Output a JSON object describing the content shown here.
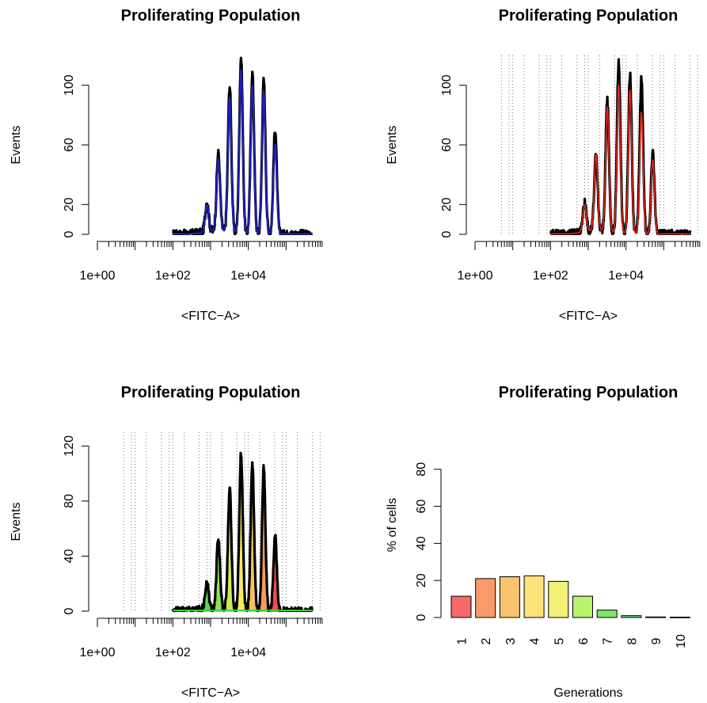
{
  "chart_data": [
    {
      "type": "line",
      "title": "Proliferating Population",
      "xlabel": "<FITC−A>",
      "ylabel": "Events",
      "x_scale": "log10",
      "xlim": [
        1,
        1000000
      ],
      "ylim": [
        0,
        120
      ],
      "x_tick_labels": [
        "1e+00",
        "1e+02",
        "1e+04"
      ],
      "y_tick_labels": [
        "0",
        "20",
        "60",
        "100"
      ],
      "grid": false,
      "series": [
        {
          "role": "data",
          "color": "#000000",
          "peak_x": [
            800,
            1600,
            3200,
            6400,
            12800,
            25600,
            51200
          ],
          "peak_y": [
            20,
            52,
            98,
            118,
            108,
            103,
            71
          ]
        },
        {
          "role": "fit",
          "color": "#1f1fb4",
          "peak_x": [
            800,
            1600,
            3200,
            6400,
            12800,
            25600,
            51200
          ],
          "peak_y": [
            18,
            48,
            90,
            110,
            100,
            96,
            60
          ]
        }
      ]
    },
    {
      "type": "line",
      "title": "Proliferating Population",
      "xlabel": "<FITC−A>",
      "ylabel": "Events",
      "x_scale": "log10",
      "xlim": [
        1,
        1000000
      ],
      "ylim": [
        0,
        120
      ],
      "x_tick_labels": [
        "1e+00",
        "1e+02",
        "1e+04"
      ],
      "y_tick_labels": [
        "0",
        "20",
        "60",
        "100"
      ],
      "grid": "vertical dotted",
      "series": [
        {
          "role": "data",
          "color": "#000000",
          "peak_x": [
            800,
            1600,
            3200,
            6400,
            12800,
            25600,
            51200
          ],
          "peak_y": [
            20,
            50,
            88,
            115,
            107,
            104,
            55
          ]
        },
        {
          "role": "fit",
          "color": "#e3261c",
          "peak_x": [
            800,
            1600,
            3200,
            6400,
            12800,
            25600,
            51200
          ],
          "peak_y": [
            18,
            51,
            84,
            100,
            97,
            82,
            50
          ]
        }
      ]
    },
    {
      "type": "area",
      "title": "Proliferating Population",
      "xlabel": "<FITC−A>",
      "ylabel": "Events",
      "x_scale": "log10",
      "xlim": [
        1,
        1000000
      ],
      "ylim": [
        0,
        130
      ],
      "x_tick_labels": [
        "1e+00",
        "1e+02",
        "1e+04"
      ],
      "y_tick_labels": [
        "0",
        "40",
        "80",
        "120"
      ],
      "grid": "vertical dotted",
      "series": [
        {
          "role": "data",
          "color": "#000000",
          "peak_x": [
            800,
            1600,
            3200,
            6400,
            12800,
            25600,
            51200
          ],
          "peak_y": [
            20,
            50,
            88,
            115,
            107,
            104,
            55
          ]
        },
        {
          "role": "generation",
          "name": "7",
          "color": "#3cd23c",
          "x": 800,
          "y": 17
        },
        {
          "role": "generation",
          "name": "6",
          "color": "#7edc37",
          "x": 1600,
          "y": 50
        },
        {
          "role": "generation",
          "name": "5",
          "color": "#c7e43a",
          "x": 3200,
          "y": 88
        },
        {
          "role": "generation",
          "name": "4",
          "color": "#f5e447",
          "x": 6400,
          "y": 100
        },
        {
          "role": "generation",
          "name": "3",
          "color": "#f6b64a",
          "x": 12800,
          "y": 97
        },
        {
          "role": "generation",
          "name": "2",
          "color": "#f28a3e",
          "x": 25600,
          "y": 82
        },
        {
          "role": "generation",
          "name": "1",
          "color": "#ef3030",
          "x": 51200,
          "y": 50
        }
      ]
    },
    {
      "type": "bar",
      "title": "Proliferating Population",
      "xlabel": "Generations",
      "ylabel": "% of cells",
      "ylim": [
        0,
        100
      ],
      "y_tick_labels": [
        "0",
        "20",
        "40",
        "60",
        "80"
      ],
      "categories": [
        "1",
        "2",
        "3",
        "4",
        "5",
        "6",
        "7",
        "8",
        "9",
        "10"
      ],
      "values": [
        11.5,
        21,
        22,
        22.5,
        19.5,
        11.5,
        4,
        1,
        0.3,
        0.2
      ],
      "colors": [
        "#f8696b",
        "#fa9a6a",
        "#fbc36d",
        "#fde27a",
        "#f1f075",
        "#b9f26d",
        "#7ee36b",
        "#6fdc73",
        "#6ad59b",
        "#6ad3c9"
      ]
    }
  ]
}
